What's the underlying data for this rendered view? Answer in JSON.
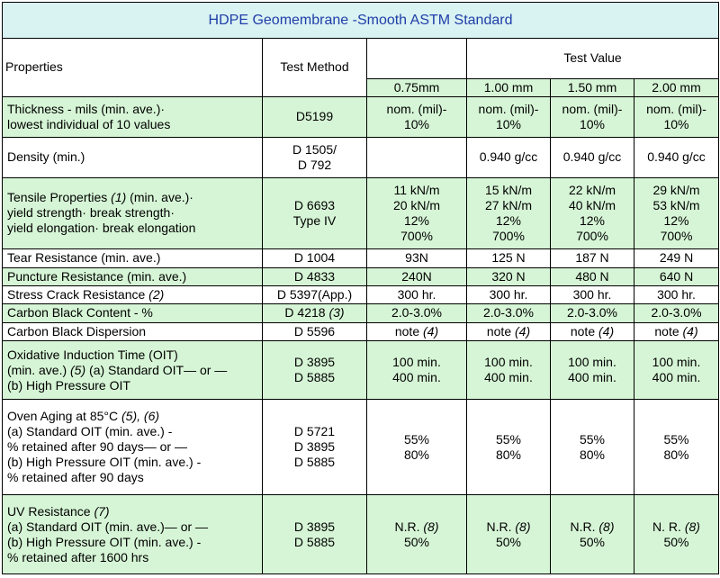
{
  "title": "HDPE Geomembrane -Smooth ASTM Standard",
  "header": {
    "properties": "Properties",
    "test_method": "Test Method",
    "test_value": "Test Value",
    "thicknesses": [
      "0.75mm",
      "1.00 mm",
      "1.50 mm",
      "2.00 mm"
    ]
  },
  "rows": [
    {
      "prop": [
        "Thickness - mils (min. ave.)·",
        " lowest individual of 10 values"
      ],
      "method": [
        "D5199"
      ],
      "values": [
        [
          "nom. (mil)-",
          "10%"
        ],
        [
          "nom. (mil)-",
          "10%"
        ],
        [
          "nom. (mil)-",
          "10%"
        ],
        [
          "nom. (mil)-",
          "10%"
        ]
      ]
    },
    {
      "prop": [
        "Density (min.)"
      ],
      "method": [
        "D 1505/",
        "D 792"
      ],
      "values": [
        [
          ""
        ],
        [
          "0.940 g/cc"
        ],
        [
          "0.940 g/cc"
        ],
        [
          "0.940 g/cc"
        ]
      ]
    },
    {
      "prop": [
        "Tensile Properties (1) (min. ave.)·",
        "yield strength·  break strength·",
        "yield elongation· break elongation"
      ],
      "method": [
        "D 6693",
        "Type IV"
      ],
      "values": [
        [
          "11 kN/m",
          "20 kN/m",
          "12%",
          "700%"
        ],
        [
          "15 kN/m",
          "27 kN/m",
          "12%",
          "700%"
        ],
        [
          "22 kN/m",
          "40 kN/m",
          "12%",
          "700%"
        ],
        [
          "29 kN/m",
          "53 kN/m",
          "12%",
          "700%"
        ]
      ]
    },
    {
      "prop": [
        "Tear Resistance  (min. ave.)"
      ],
      "method": [
        "D 1004"
      ],
      "values": [
        [
          "93N"
        ],
        [
          "125 N"
        ],
        [
          "187 N"
        ],
        [
          "249 N"
        ]
      ]
    },
    {
      "prop": [
        "Puncture Resistance (min. ave.)"
      ],
      "method": [
        "D 4833"
      ],
      "values": [
        [
          "240N"
        ],
        [
          "320 N"
        ],
        [
          "480 N"
        ],
        [
          "640 N"
        ]
      ]
    },
    {
      "prop": [
        "Stress Crack Resistance (2)"
      ],
      "method": [
        "D 5397(App.)"
      ],
      "values": [
        [
          "300 hr."
        ],
        [
          "300 hr."
        ],
        [
          "300 hr."
        ],
        [
          "300 hr."
        ]
      ]
    },
    {
      "prop": [
        "Carbon Black Content - %"
      ],
      "method": [
        "D 4218 (3)"
      ],
      "values": [
        [
          "2.0-3.0%"
        ],
        [
          "2.0-3.0%"
        ],
        [
          "2.0-3.0%"
        ],
        [
          "2.0-3.0%"
        ]
      ]
    },
    {
      "prop": [
        "Carbon Black Dispersion"
      ],
      "method": [
        "D 5596"
      ],
      "values": [
        [
          "note (4)"
        ],
        [
          "note (4)"
        ],
        [
          "note (4)"
        ],
        [
          "note (4)"
        ]
      ]
    },
    {
      "prop": [
        "Oxidative Induction Time (OIT)",
        "(min. ave.) (5) (a) Standard OIT— or —",
        "(b) High Pressure OIT"
      ],
      "method": [
        "D 3895",
        "D 5885"
      ],
      "values": [
        [
          "100 min.",
          "400 min."
        ],
        [
          "100 min.",
          "400 min."
        ],
        [
          "100 min.",
          "400 min."
        ],
        [
          "100 min.",
          "400 min."
        ]
      ]
    },
    {
      "prop": [
        "Oven Aging at 85°C (5), (6)",
        "(a) Standard OIT (min. ave.) -",
        " % retained after 90 days— or —",
        "(b) High Pressure OIT (min. ave.) -",
        " % retained after 90 days"
      ],
      "method": [
        "D 5721",
        "D 3895",
        "D 5885"
      ],
      "values": [
        [
          "55%",
          "80%"
        ],
        [
          "55%",
          "80%"
        ],
        [
          "55%",
          "80%"
        ],
        [
          "55%",
          "80%"
        ]
      ]
    },
    {
      "prop": [
        "UV Resistance (7)",
        "(a) Standard OIT (min. ave.)— or —",
        "(b) High Pressure OIT (min. ave.) -",
        " % retained after 1600 hrs"
      ],
      "method": [
        "D 3895",
        "D 5885"
      ],
      "values": [
        [
          "N.R. (8)",
          "50%"
        ],
        [
          "N.R. (8)",
          "50%"
        ],
        [
          "N.R. (8)",
          "50%"
        ],
        [
          "N. R. (8)",
          "50%"
        ]
      ]
    }
  ]
}
